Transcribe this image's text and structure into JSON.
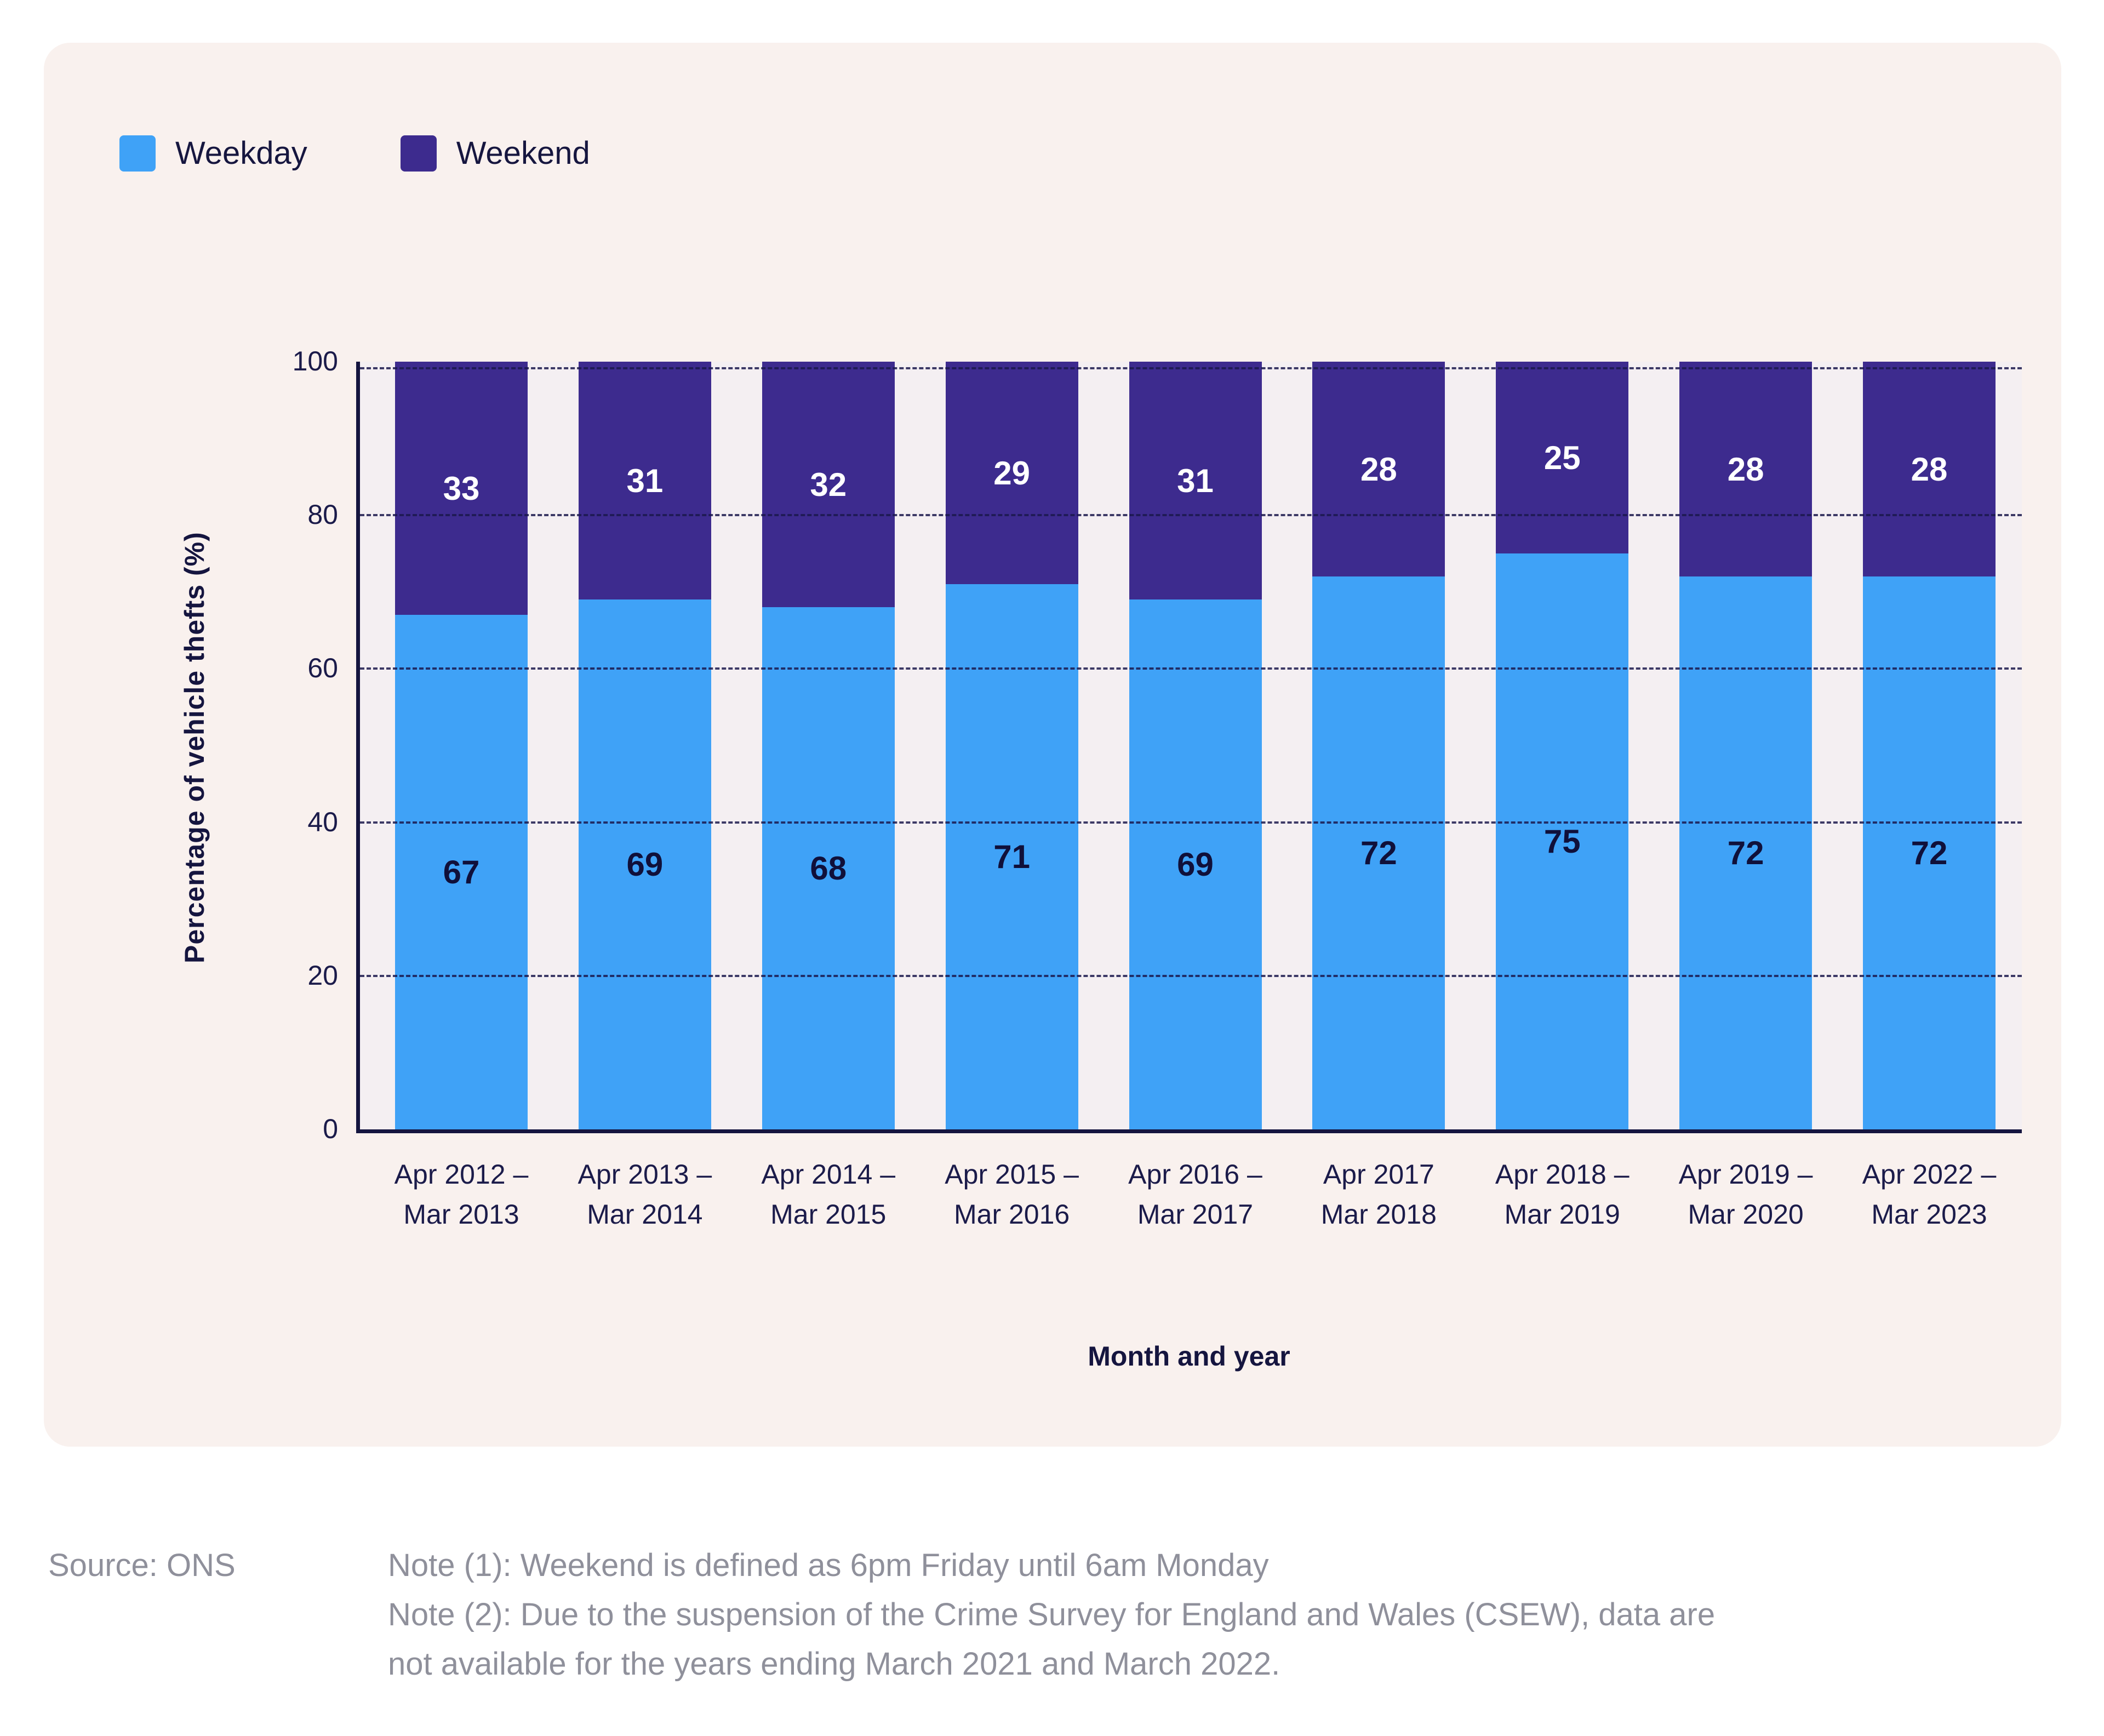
{
  "chart_data": {
    "type": "bar",
    "stacked": true,
    "title": "",
    "xlabel": "Month and year",
    "ylabel": "Percentage of vehicle thefts (%)",
    "ylim": [
      0,
      100
    ],
    "yticks": [
      0,
      20,
      40,
      60,
      80,
      100
    ],
    "grid": "dashed-horizontal",
    "legend_position": "top-left",
    "categories": [
      "Apr 2012 –\nMar 2013",
      "Apr 2013 –\nMar 2014",
      "Apr 2014 –\nMar 2015",
      "Apr 2015 –\nMar 2016",
      "Apr 2016 –\nMar 2017",
      "Apr 2017\nMar 2018",
      "Apr 2018 –\nMar 2019",
      "Apr 2019 –\nMar 2020",
      "Apr 2022 –\nMar 2023"
    ],
    "series": [
      {
        "name": "Weekday",
        "color": "#3FA2F7",
        "label_color": "#10103A",
        "values": [
          67,
          69,
          68,
          71,
          69,
          72,
          75,
          72,
          72
        ]
      },
      {
        "name": "Weekend",
        "color": "#3D2B8E",
        "label_color": "#FFFFFF",
        "values": [
          33,
          31,
          32,
          29,
          31,
          28,
          25,
          28,
          28
        ]
      }
    ]
  },
  "footer": {
    "source": "Source: ONS",
    "note1": "Note (1): Weekend is defined as 6pm Friday until 6am Monday",
    "note2": "Note (2): Due to the suspension of the Crime Survey for England and Wales (CSEW), data are not available for the years ending March 2021 and March 2022."
  },
  "colors": {
    "card_background": "#F9F1EE",
    "plot_background": "#F4EFF2",
    "axis": "#15153F",
    "tick_text": "#1B1B4A",
    "footer_text": "#8F909B",
    "weekday": "#3FA2F7",
    "weekend": "#3D2B8E"
  }
}
